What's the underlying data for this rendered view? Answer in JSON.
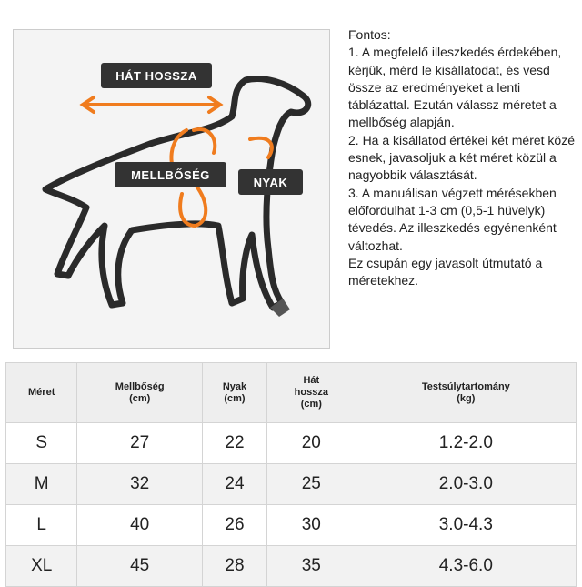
{
  "diagram": {
    "labels": {
      "back_length": "HÁT HOSSZA",
      "chest": "MELLBŐSÉG",
      "neck": "NYAK"
    },
    "accent_color": "#f07c1e",
    "label_bg": "#333333"
  },
  "notes": {
    "lines": [
      "Fontos:",
      "1. A megfelelő illeszkedés érdekében, kérjük, mérd le kisállatodat, és vesd össze az eredményeket a lenti táblázattal. Ezután válassz méretet a mellbőség alapján.",
      "2. Ha a kisállatod értékei két méret közé esnek, javasoljuk a két méret közül a nagyobbik választását.",
      "3. A manuálisan végzett mérésekben előfordulhat 1-3 cm (0,5-1 hüvelyk) tévedés. Az illeszkedés egyénenként változhat.",
      "Ez csupán egy javasolt útmutató a méretekhez."
    ]
  },
  "table": {
    "headers": [
      [
        "Méret"
      ],
      [
        "Mellbőség",
        "(cm)"
      ],
      [
        "Nyak",
        "(cm)"
      ],
      [
        "Hát",
        "hossza",
        "(cm)"
      ],
      [
        "Testsúlytartomány",
        "(kg)"
      ]
    ],
    "rows": [
      [
        "S",
        "27",
        "22",
        "20",
        "1.2-2.0"
      ],
      [
        "M",
        "32",
        "24",
        "25",
        "2.0-3.0"
      ],
      [
        "L",
        "40",
        "26",
        "30",
        "3.0-4.3"
      ],
      [
        "XL",
        "45",
        "28",
        "35",
        "4.3-6.0"
      ]
    ]
  }
}
